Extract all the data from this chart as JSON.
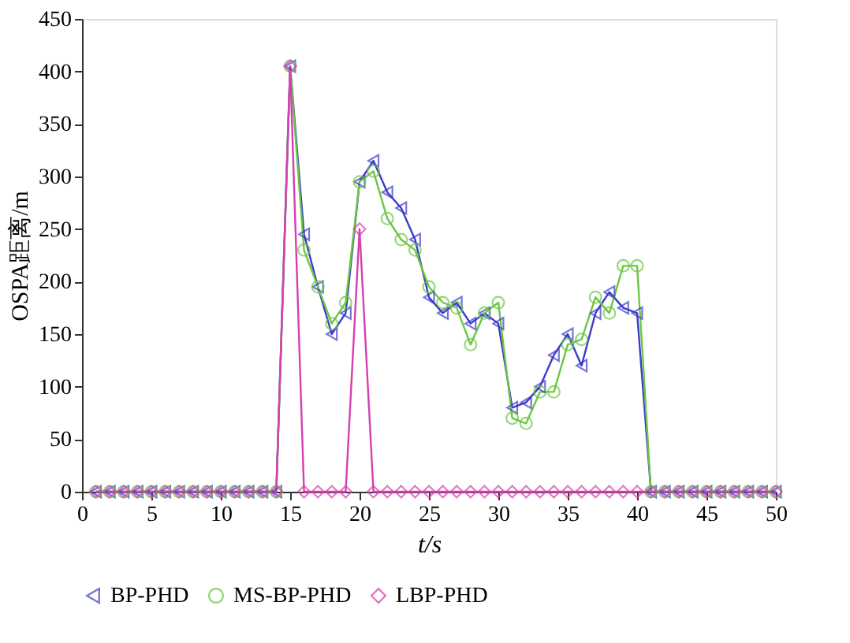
{
  "chart_data": {
    "type": "line",
    "xlabel": "t/s",
    "ylabel": "OSPA距离/m",
    "x": [
      1,
      2,
      3,
      4,
      5,
      6,
      7,
      8,
      9,
      10,
      11,
      12,
      13,
      14,
      15,
      16,
      17,
      18,
      19,
      20,
      21,
      22,
      23,
      24,
      25,
      26,
      27,
      28,
      29,
      30,
      31,
      32,
      33,
      34,
      35,
      36,
      37,
      38,
      39,
      40,
      41,
      42,
      43,
      44,
      45,
      46,
      47,
      48,
      49,
      50
    ],
    "series": [
      {
        "name": "BP-PHD",
        "color": "#3c3cc8",
        "marker": "triangle",
        "values": [
          0,
          0,
          0,
          0,
          0,
          0,
          0,
          0,
          0,
          0,
          0,
          0,
          0,
          0,
          405,
          245,
          195,
          150,
          170,
          295,
          315,
          285,
          270,
          240,
          185,
          170,
          180,
          160,
          170,
          160,
          80,
          85,
          100,
          130,
          150,
          120,
          170,
          190,
          175,
          170,
          0,
          0,
          0,
          0,
          0,
          0,
          0,
          0,
          0,
          0
        ]
      },
      {
        "name": "MS-BP-PHD",
        "color": "#6cc644",
        "marker": "circle",
        "values": [
          0,
          0,
          0,
          0,
          0,
          0,
          0,
          0,
          0,
          0,
          0,
          0,
          0,
          0,
          405,
          230,
          195,
          160,
          180,
          295,
          305,
          260,
          240,
          230,
          195,
          180,
          175,
          140,
          170,
          180,
          70,
          65,
          95,
          95,
          140,
          145,
          185,
          170,
          215,
          215,
          0,
          0,
          0,
          0,
          0,
          0,
          0,
          0,
          0,
          0
        ]
      },
      {
        "name": "LBP-PHD",
        "color": "#d63fb0",
        "marker": "diamond",
        "values": [
          0,
          0,
          0,
          0,
          0,
          0,
          0,
          0,
          0,
          0,
          0,
          0,
          0,
          0,
          405,
          0,
          0,
          0,
          0,
          250,
          0,
          0,
          0,
          0,
          0,
          0,
          0,
          0,
          0,
          0,
          0,
          0,
          0,
          0,
          0,
          0,
          0,
          0,
          0,
          0,
          0,
          0,
          0,
          0,
          0,
          0,
          0,
          0,
          0,
          0
        ]
      }
    ],
    "xlim": [
      0,
      50
    ],
    "xticks": [
      0,
      5,
      10,
      15,
      20,
      25,
      30,
      35,
      40,
      45,
      50
    ],
    "ylim": [
      0,
      450
    ],
    "yticks": [
      0,
      50,
      100,
      150,
      200,
      250,
      300,
      350,
      400,
      450
    ],
    "grid": false,
    "legend": "bottom",
    "line_style": "solid"
  }
}
